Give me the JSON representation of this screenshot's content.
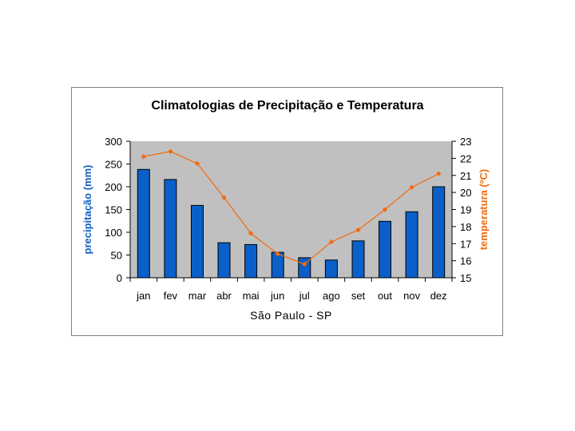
{
  "chart_data": {
    "type": "bar+line",
    "title": "Climatologias de Precipitação e Temperatura",
    "xlabel": "São Paulo - SP",
    "ylabel_left": "precipitação (mm)",
    "ylabel_right": "temperatura (ºC)",
    "categories": [
      "jan",
      "fev",
      "mar",
      "abr",
      "mai",
      "jun",
      "jul",
      "ago",
      "set",
      "out",
      "nov",
      "dez"
    ],
    "series": [
      {
        "name": "precipitação",
        "type": "bar",
        "axis": "left",
        "color": "#0a5fc8",
        "values": [
          238,
          216,
          159,
          77,
          73,
          56,
          44,
          39,
          81,
          124,
          145,
          200
        ]
      },
      {
        "name": "temperatura",
        "type": "line",
        "axis": "right",
        "color": "#f26a10",
        "values": [
          22.1,
          22.4,
          21.7,
          19.7,
          17.6,
          16.4,
          15.8,
          17.1,
          17.8,
          19.0,
          20.3,
          21.1
        ]
      }
    ],
    "ylim_left": [
      0,
      300
    ],
    "yticks_left": [
      "0",
      "50",
      "100",
      "150",
      "200",
      "250",
      "300"
    ],
    "ylim_right": [
      15,
      23
    ],
    "yticks_right": [
      "15",
      "16",
      "17",
      "18",
      "19",
      "20",
      "21",
      "22",
      "23"
    ],
    "plot_background": "#c0c0c0",
    "left_axis_label_color": "#1060c0",
    "right_axis_label_color": "#f26a10",
    "grid": false
  }
}
